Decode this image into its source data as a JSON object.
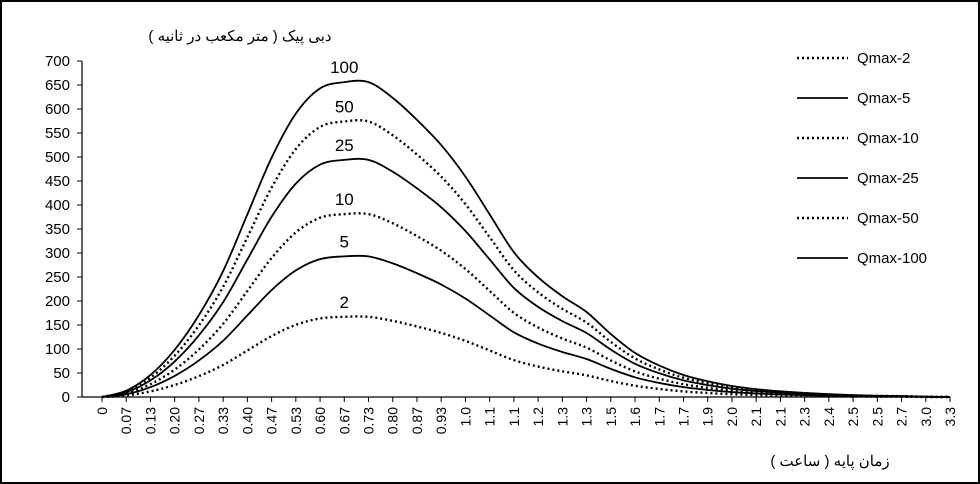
{
  "chart_data": {
    "type": "line",
    "ylabel": "دبی پیک ( متر مکعب در ثانیه )",
    "xlabel": "زمان پایه ( ساعت )",
    "ylim": [
      0,
      700
    ],
    "y_ticks": [
      0,
      50,
      100,
      150,
      200,
      250,
      300,
      350,
      400,
      450,
      500,
      550,
      600,
      650,
      700
    ],
    "x_ticks": [
      "0",
      "0.07",
      "0.13",
      "0.20",
      "0.27",
      "0.33",
      "0.40",
      "0.47",
      "0.53",
      "0.60",
      "0.67",
      "0.73",
      "0.80",
      "0.87",
      "0.93",
      "1.0",
      "1.1",
      "1.1",
      "1.2",
      "1.3",
      "1.3",
      "1.5",
      "1.6",
      "1.7",
      "1.7",
      "1.9",
      "2.0",
      "2.1",
      "2.1",
      "2.3",
      "2.4",
      "2.5",
      "2.5",
      "2.7",
      "3.0",
      "3.3"
    ],
    "grid": false,
    "legend_position": "top-right",
    "shape_ratio": [
      0,
      0.02,
      0.07,
      0.15,
      0.26,
      0.4,
      0.58,
      0.76,
      0.9,
      0.98,
      1.0,
      1.0,
      0.95,
      0.88,
      0.8,
      0.7,
      0.58,
      0.46,
      0.38,
      0.32,
      0.27,
      0.2,
      0.14,
      0.1,
      0.07,
      0.05,
      0.035,
      0.025,
      0.018,
      0.013,
      0.009,
      0.006,
      0.004,
      0.003,
      0.001,
      0
    ],
    "series": [
      {
        "name": "Qmax-2",
        "peak": 167,
        "label": "2",
        "dash": "dotted"
      },
      {
        "name": "Qmax-5",
        "peak": 293,
        "label": "5",
        "dash": "solid"
      },
      {
        "name": "Qmax-10",
        "peak": 381,
        "label": "10",
        "dash": "dotted"
      },
      {
        "name": "Qmax-25",
        "peak": 494,
        "label": "25",
        "dash": "solid"
      },
      {
        "name": "Qmax-50",
        "peak": 574,
        "label": "50",
        "dash": "dotted"
      },
      {
        "name": "Qmax-100",
        "peak": 656,
        "label": "100",
        "dash": "solid"
      }
    ]
  }
}
